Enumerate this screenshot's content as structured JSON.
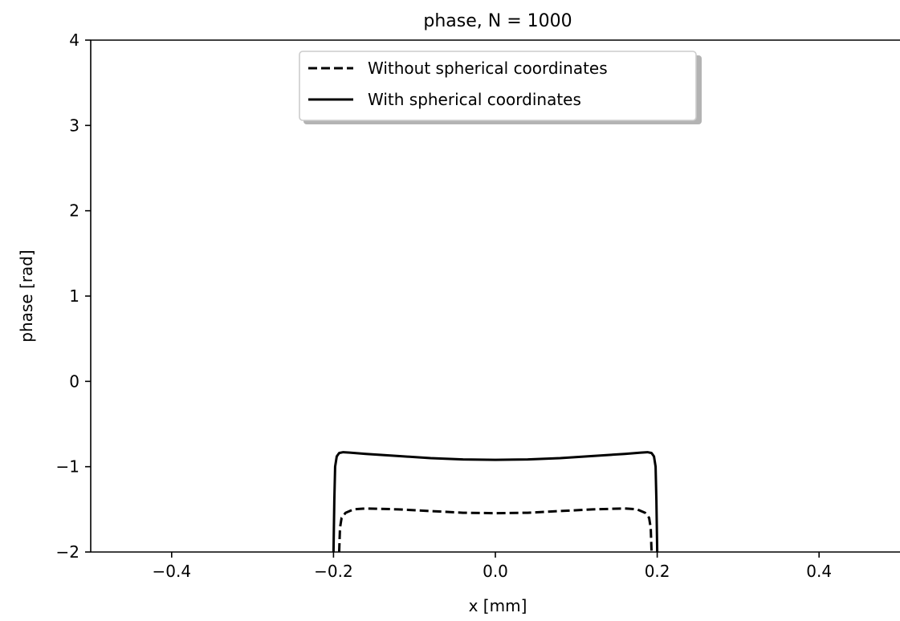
{
  "chart_data": {
    "type": "line",
    "title": "phase, N = 1000",
    "xlabel": "x [mm]",
    "ylabel": "phase [rad]",
    "xlim": [
      -0.5,
      0.5
    ],
    "ylim": [
      -2,
      4
    ],
    "xticks": [
      -0.4,
      -0.2,
      0.0,
      0.2,
      0.4
    ],
    "xtick_labels": [
      "−0.4",
      "−0.2",
      "0.0",
      "0.2",
      "0.4"
    ],
    "yticks": [
      -2,
      -1,
      0,
      1,
      2,
      3,
      4
    ],
    "ytick_labels": [
      "−2",
      "−1",
      "0",
      "1",
      "2",
      "3",
      "4"
    ],
    "grid": false,
    "legend_position": "top-center",
    "series": [
      {
        "name": "Without spherical coordinates",
        "style": "dashed",
        "color": "#000000",
        "x": [
          -0.193,
          -0.192,
          -0.19,
          -0.185,
          -0.175,
          -0.16,
          -0.12,
          -0.08,
          -0.04,
          0.0,
          0.04,
          0.08,
          0.12,
          0.16,
          0.175,
          0.185,
          0.19,
          0.192,
          0.193
        ],
        "y": [
          -2.0,
          -1.72,
          -1.6,
          -1.54,
          -1.5,
          -1.49,
          -1.5,
          -1.52,
          -1.54,
          -1.545,
          -1.54,
          -1.52,
          -1.5,
          -1.49,
          -1.5,
          -1.54,
          -1.6,
          -1.72,
          -2.0
        ]
      },
      {
        "name": "With spherical coordinates",
        "style": "solid",
        "color": "#000000",
        "x": [
          -0.2,
          -0.199,
          -0.198,
          -0.196,
          -0.193,
          -0.188,
          -0.18,
          -0.16,
          -0.12,
          -0.08,
          -0.04,
          0.0,
          0.04,
          0.08,
          0.12,
          0.16,
          0.18,
          0.188,
          0.193,
          0.196,
          0.198,
          0.199,
          0.2
        ],
        "y": [
          -2.0,
          -1.4,
          -1.0,
          -0.88,
          -0.84,
          -0.83,
          -0.835,
          -0.85,
          -0.875,
          -0.9,
          -0.915,
          -0.92,
          -0.915,
          -0.9,
          -0.875,
          -0.85,
          -0.835,
          -0.83,
          -0.84,
          -0.88,
          -1.0,
          -1.4,
          -2.0
        ]
      }
    ]
  }
}
